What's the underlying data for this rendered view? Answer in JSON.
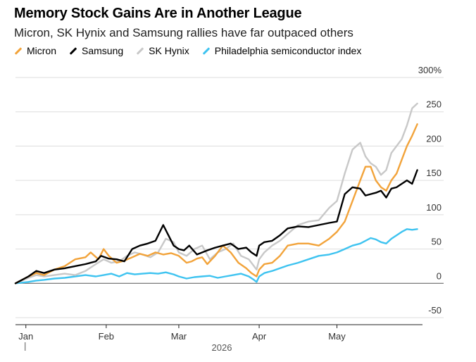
{
  "title": "Memory Stock Gains Are in Another League",
  "subtitle": "Micron, SK Hynix and Samsung rallies have far outpaced others",
  "colors": {
    "micron": "#f2a33a",
    "samsung": "#000000",
    "hynix": "#c8c8c8",
    "sox": "#3ec3f0"
  },
  "chart_data": {
    "type": "line",
    "xlabel": "",
    "ylabel": "",
    "ylim": [
      -50,
      300
    ],
    "y_ticks": [
      -50,
      0,
      50,
      100,
      150,
      200,
      250,
      300
    ],
    "y_tick_labels": [
      "-50",
      "0",
      "50",
      "100",
      "150",
      "200",
      "250",
      "300%"
    ],
    "x_ticks": [
      {
        "label": "Jan",
        "day": 1
      },
      {
        "label": "Feb",
        "day": 32
      },
      {
        "label": "Mar",
        "day": 60
      },
      {
        "label": "Apr",
        "day": 91
      },
      {
        "label": "May",
        "day": 121
      }
    ],
    "x_year_label": "2026",
    "x_range": [
      -3,
      154
    ],
    "grid": true,
    "legend": "top-left",
    "series": [
      {
        "name": "Micron",
        "color_key": "micron",
        "x": [
          -3,
          2,
          5,
          8,
          12,
          16,
          20,
          24,
          26,
          29,
          31,
          33,
          36,
          39,
          42,
          45,
          48,
          51,
          54,
          57,
          60,
          63,
          65,
          67,
          69,
          71,
          74,
          77,
          80,
          83,
          86,
          88,
          90,
          91,
          93,
          96,
          99,
          102,
          106,
          110,
          114,
          118,
          121,
          124,
          127,
          130,
          132,
          134,
          136,
          138,
          140,
          142,
          144,
          146,
          148,
          150,
          152
        ],
        "y": [
          0,
          10,
          15,
          12,
          20,
          25,
          35,
          38,
          45,
          35,
          50,
          40,
          30,
          33,
          38,
          43,
          40,
          45,
          42,
          44,
          40,
          30,
          32,
          36,
          38,
          28,
          40,
          55,
          45,
          30,
          22,
          15,
          10,
          20,
          28,
          30,
          40,
          55,
          58,
          58,
          55,
          65,
          75,
          90,
          120,
          150,
          170,
          170,
          150,
          140,
          135,
          150,
          160,
          180,
          200,
          215,
          232
        ]
      },
      {
        "name": "Samsung",
        "color_key": "samsung",
        "x": [
          -3,
          2,
          5,
          8,
          12,
          16,
          20,
          24,
          28,
          30,
          33,
          36,
          39,
          42,
          45,
          48,
          51,
          54,
          56,
          58,
          60,
          62,
          64,
          67,
          71,
          74,
          77,
          80,
          83,
          86,
          88,
          90,
          91,
          93,
          96,
          99,
          102,
          106,
          110,
          114,
          118,
          121,
          124,
          127,
          130,
          132,
          134,
          136,
          138,
          140,
          142,
          144,
          146,
          148,
          150,
          152
        ],
        "y": [
          0,
          10,
          18,
          15,
          20,
          22,
          25,
          28,
          32,
          40,
          36,
          35,
          32,
          50,
          55,
          58,
          62,
          85,
          70,
          55,
          50,
          48,
          55,
          42,
          48,
          52,
          55,
          58,
          50,
          52,
          45,
          40,
          55,
          60,
          62,
          70,
          80,
          83,
          82,
          85,
          88,
          90,
          130,
          140,
          138,
          128,
          130,
          132,
          135,
          125,
          138,
          140,
          145,
          150,
          145,
          165
        ]
      },
      {
        "name": "SK Hynix",
        "color_key": "hynix",
        "x": [
          -3,
          2,
          5,
          8,
          12,
          16,
          20,
          24,
          28,
          31,
          34,
          37,
          40,
          43,
          46,
          49,
          52,
          55,
          58,
          60,
          63,
          66,
          69,
          72,
          75,
          78,
          81,
          84,
          87,
          89,
          90,
          91,
          93,
          96,
          99,
          102,
          106,
          110,
          114,
          118,
          121,
          124,
          127,
          130,
          132,
          134,
          136,
          138,
          140,
          142,
          144,
          146,
          148,
          150,
          152
        ],
        "y": [
          0,
          8,
          12,
          10,
          12,
          14,
          12,
          18,
          28,
          35,
          30,
          32,
          40,
          45,
          42,
          38,
          45,
          65,
          60,
          45,
          40,
          50,
          55,
          35,
          45,
          50,
          58,
          40,
          35,
          25,
          20,
          35,
          45,
          55,
          62,
          72,
          85,
          90,
          92,
          110,
          120,
          160,
          195,
          205,
          185,
          175,
          170,
          158,
          165,
          190,
          200,
          210,
          230,
          255,
          262
        ]
      },
      {
        "name": "Philadelphia semiconductor index",
        "color_key": "sox",
        "x": [
          -3,
          2,
          5,
          8,
          12,
          16,
          20,
          24,
          28,
          31,
          34,
          37,
          40,
          43,
          46,
          49,
          52,
          55,
          58,
          60,
          63,
          66,
          69,
          72,
          75,
          78,
          81,
          84,
          87,
          89,
          90,
          91,
          93,
          96,
          99,
          102,
          106,
          110,
          114,
          118,
          121,
          124,
          127,
          130,
          132,
          134,
          136,
          138,
          140,
          142,
          144,
          146,
          148,
          150,
          152
        ],
        "y": [
          0,
          2,
          4,
          5,
          7,
          8,
          10,
          12,
          10,
          12,
          14,
          10,
          15,
          13,
          14,
          15,
          14,
          16,
          13,
          10,
          7,
          9,
          10,
          11,
          8,
          10,
          12,
          14,
          10,
          5,
          2,
          10,
          15,
          18,
          22,
          26,
          30,
          35,
          40,
          42,
          45,
          50,
          55,
          58,
          62,
          66,
          64,
          60,
          58,
          65,
          70,
          75,
          79,
          78,
          79
        ]
      }
    ]
  }
}
